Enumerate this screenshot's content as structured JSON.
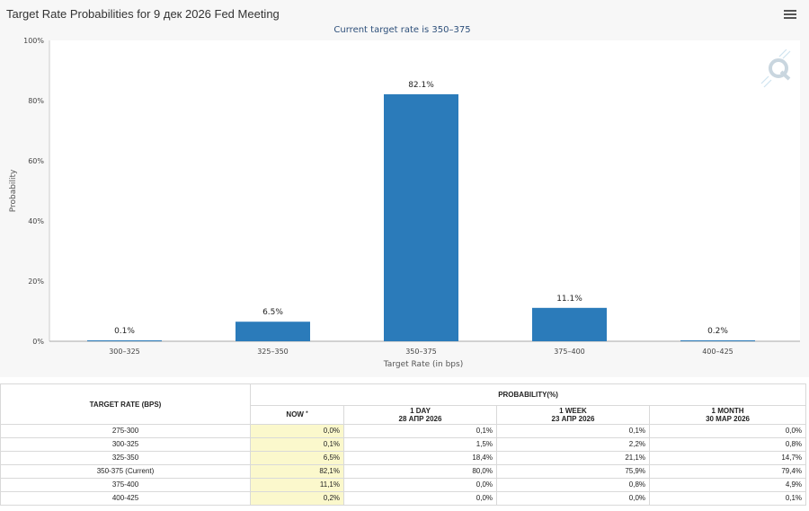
{
  "chart": {
    "title": "Target Rate Probabilities for 9 дек 2026 Fed Meeting",
    "subtitle": "Current target rate is 350–375",
    "menu_icon": "hamburger-menu-icon",
    "logo_icon": "q-logo-icon"
  },
  "chart_data": {
    "type": "bar",
    "title": "Target Rate Probabilities for 9 дек 2026 Fed Meeting",
    "subtitle": "Current target rate is 350–375",
    "xlabel": "Target Rate (in bps)",
    "ylabel": "Probability",
    "categories": [
      "300–325",
      "325–350",
      "350–375",
      "375–400",
      "400–425"
    ],
    "values": [
      0.1,
      6.5,
      82.1,
      11.1,
      0.2
    ],
    "data_labels": [
      "0.1%",
      "6.5%",
      "82.1%",
      "11.1%",
      "0.2%"
    ],
    "ylim": [
      0,
      100
    ],
    "yticks": [
      0,
      20,
      40,
      60,
      80,
      100
    ],
    "ytick_labels": [
      "0%",
      "20%",
      "40%",
      "60%",
      "80%",
      "100%"
    ],
    "grid": false,
    "bar_color": "#2b7bba"
  },
  "table": {
    "target_header": "TARGET RATE (BPS)",
    "probability_header": "PROBABILITY(%)",
    "now_header": "NOW",
    "now_marker": "*",
    "day_header": "1 DAY",
    "day_date": "28 АПР 2026",
    "week_header": "1 WEEK",
    "week_date": "23 АПР 2026",
    "month_header": "1 MONTH",
    "month_date": "30 МАР 2026",
    "rows": [
      {
        "rate": "275-300",
        "now": "0,0%",
        "day": "0,1%",
        "week": "0,1%",
        "month": "0,0%"
      },
      {
        "rate": "300-325",
        "now": "0,1%",
        "day": "1,5%",
        "week": "2,2%",
        "month": "0,8%"
      },
      {
        "rate": "325-350",
        "now": "6,5%",
        "day": "18,4%",
        "week": "21,1%",
        "month": "14,7%"
      },
      {
        "rate": "350-375 (Current)",
        "now": "82,1%",
        "day": "80,0%",
        "week": "75,9%",
        "month": "79,4%"
      },
      {
        "rate": "375-400",
        "now": "11,1%",
        "day": "0,0%",
        "week": "0,8%",
        "month": "4,9%"
      },
      {
        "rate": "400-425",
        "now": "0,2%",
        "day": "0,0%",
        "week": "0,0%",
        "month": "0,1%"
      }
    ]
  }
}
